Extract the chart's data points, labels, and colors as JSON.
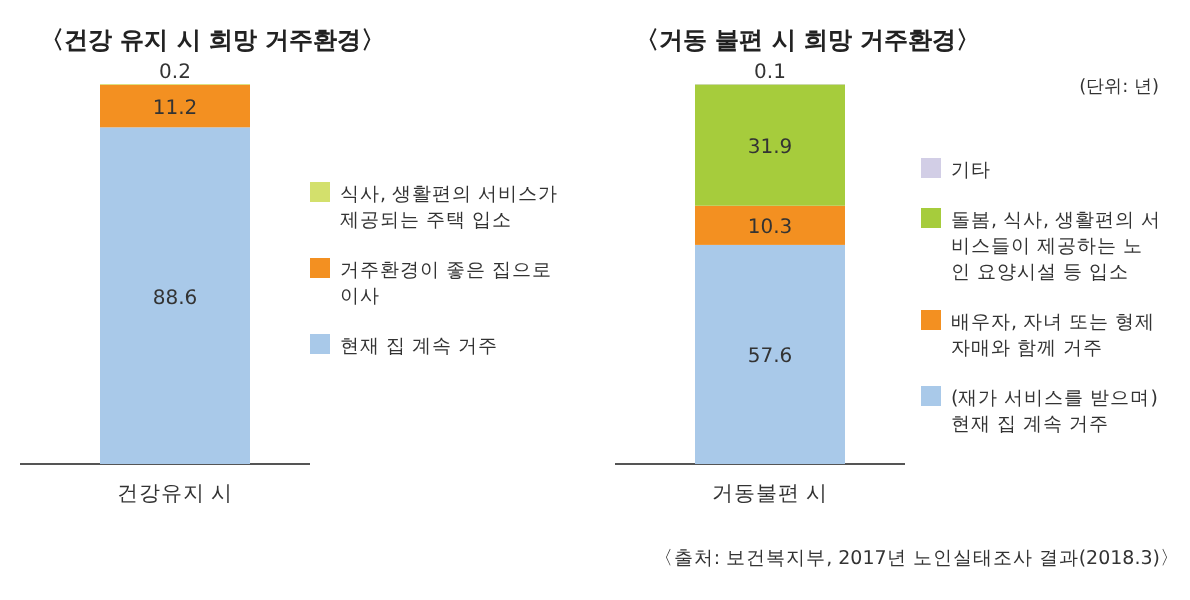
{
  "chart_data": [
    {
      "type": "bar",
      "stacked": true,
      "title": "〈건강 유지 시 희망 거주환경〉",
      "categories": [
        "건강유지 시"
      ],
      "data_labels": true,
      "legend": "right",
      "series": [
        {
          "name": "현재 집 계속 거주",
          "color": "#a9c9e9",
          "values": [
            88.6
          ]
        },
        {
          "name": "거주환경이 좋은 집으로 이사",
          "color": "#f39021",
          "values": [
            11.2
          ]
        },
        {
          "name": "식사, 생활편의 서비스가 제공되는 주택 입소",
          "color": "#d3e06c",
          "values": [
            0.2
          ]
        }
      ]
    },
    {
      "type": "bar",
      "stacked": true,
      "title": "〈거동 불편 시 희망 거주환경〉",
      "categories": [
        "거동불편 시"
      ],
      "data_labels": true,
      "legend": "right",
      "annotations": [
        "(단위: 년)",
        "〈출처: 보건복지부, 2017년 노인실태조사 결과(2018.3)〉"
      ],
      "series": [
        {
          "name": "(재가 서비스를 받으며) 현재 집 계속 거주",
          "color": "#a9c9e9",
          "values": [
            57.6
          ]
        },
        {
          "name": "배우자, 자녀 또는 형제 자매와 함께 거주",
          "color": "#f39021",
          "values": [
            10.3
          ]
        },
        {
          "name": "돌봄, 식사, 생활편의 서비스들이 제공하는 노인 요양시설 등 입소",
          "color": "#a6cc3c",
          "values": [
            31.9
          ]
        },
        {
          "name": "기타",
          "color": "#d2cee6",
          "values": [
            0.1
          ]
        }
      ]
    }
  ]
}
